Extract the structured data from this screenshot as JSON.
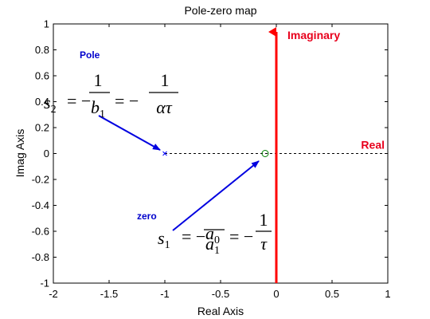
{
  "chart_data": {
    "type": "scatter",
    "title": "Pole-zero map",
    "xlabel": "Real Axis",
    "ylabel": "Imag Axis",
    "xlim": [
      -2,
      1
    ],
    "ylim": [
      -1,
      1
    ],
    "xticks": [
      "-2",
      "-1.5",
      "-1",
      "-0.5",
      "0",
      "0.5",
      "1"
    ],
    "yticks": [
      "-1",
      "-0.8",
      "-0.6",
      "-0.4",
      "-0.2",
      "0",
      "0.2",
      "0.4",
      "0.6",
      "0.8",
      "1"
    ],
    "xtick_values": [
      -2,
      -1.5,
      -1,
      -0.5,
      0,
      0.5,
      1
    ],
    "ytick_values": [
      -1,
      -0.8,
      -0.6,
      -0.4,
      -0.2,
      0,
      0.2,
      0.4,
      0.6,
      0.8,
      1
    ],
    "grid": false,
    "points": [
      {
        "x": -1.0,
        "y": 0,
        "marker": "x",
        "color": "#0000ff"
      },
      {
        "x": -0.1,
        "y": 0,
        "marker": "o",
        "color": "#008000"
      }
    ],
    "reference_line": {
      "y": 0,
      "from_x": -1.0,
      "to_x": 1,
      "style": "dashed"
    },
    "annotations": {
      "imaginary_label": "Imaginary",
      "real_label": "Real",
      "pole_label": "Pole",
      "zero_label": "zero",
      "pole_formula": {
        "lhs": "s",
        "lhs_sub": "2",
        "frac1_num": "1",
        "frac1_den": "b",
        "frac1_den_sub": "1",
        "frac2_num": "1",
        "frac2_den": "ατ"
      },
      "zero_formula": {
        "lhs": "s",
        "lhs_sub": "1",
        "frac1_num": "a",
        "frac1_num_sub": "0",
        "frac1_den": "a",
        "frac1_den_sub": "1",
        "frac2_num": "1",
        "frac2_den": "τ"
      }
    },
    "colors": {
      "axis_arrow": "#ff0000",
      "annotation_arrow": "#0000e0",
      "annotation_text": "#0000cc",
      "label_red": "#e8001c"
    }
  }
}
